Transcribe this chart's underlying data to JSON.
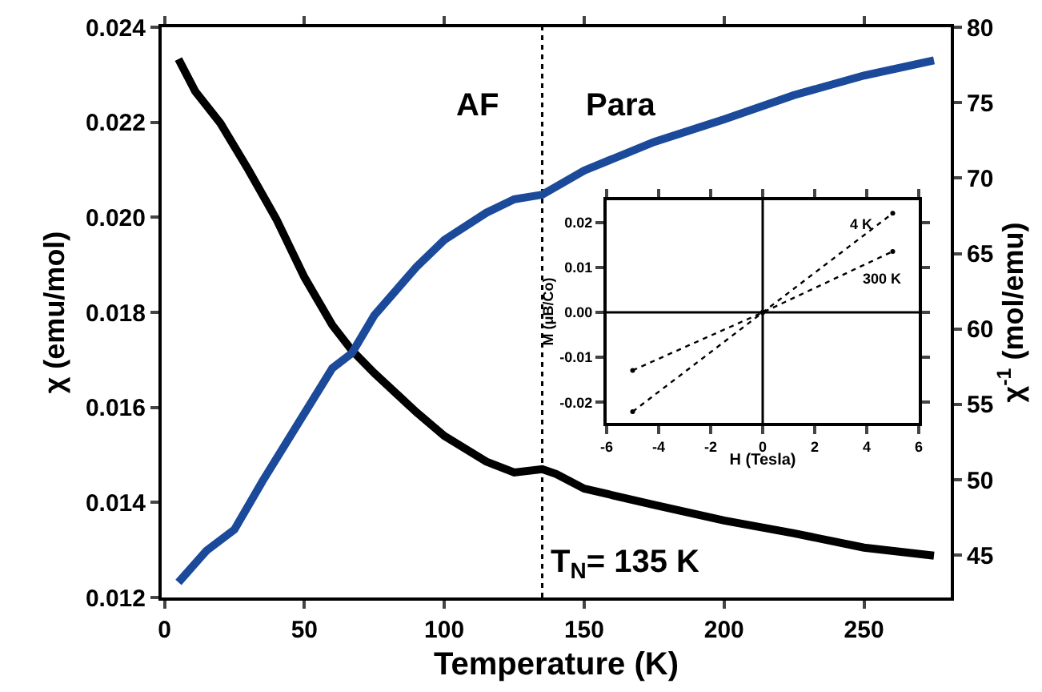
{
  "chart_data": [
    {
      "type": "line",
      "xlabel": "Temperature (K)",
      "ylabel": "χ (emu/mol)",
      "y2label": "χ$^{-1}$ (mol/emu)",
      "xlim": [
        -1,
        281
      ],
      "xticks": [
        0,
        50,
        100,
        150,
        200,
        250
      ],
      "ylim": [
        0.012,
        0.024
      ],
      "yticks": [
        0.012,
        0.014,
        0.016,
        0.018,
        {
          "value": 0.02,
          "label": "0.020"
        },
        0.022,
        0.024
      ],
      "y2lim": [
        42.2,
        80
      ],
      "y2ticks": [
        45,
        50,
        55,
        60,
        65,
        70,
        75,
        80
      ],
      "grid": false,
      "legend": false,
      "marker": "none",
      "line_style": "solid",
      "series": [
        {
          "color": "#000000",
          "x": [
            5,
            11,
            20,
            30,
            40,
            50,
            60,
            67,
            75,
            90,
            100,
            115,
            125,
            135,
            140,
            150,
            175,
            200,
            225,
            250,
            275
          ],
          "values": [
            0.02333,
            0.02265,
            0.02198,
            0.021,
            0.01996,
            0.01874,
            0.01773,
            0.0172,
            0.01672,
            0.0159,
            0.0154,
            0.01486,
            0.01463,
            0.0147,
            0.0146,
            0.01429,
            0.01395,
            0.01362,
            0.01335,
            0.01305,
            0.01288
          ]
        },
        {
          "color": "#1c4a9a",
          "axis": "y2",
          "x": [
            5,
            15,
            25,
            35,
            50,
            60,
            67,
            75,
            90,
            100,
            115,
            125,
            135,
            150,
            175,
            200,
            225,
            250,
            275
          ],
          "values": [
            43.2,
            45.3,
            46.7,
            49.9,
            54.4,
            57.4,
            58.4,
            60.9,
            64.1,
            65.9,
            67.7,
            68.6,
            68.9,
            70.5,
            72.4,
            73.9,
            75.5,
            76.8,
            77.8
          ]
        }
      ],
      "ref_lines": [
        {
          "axis": "x",
          "value": 135,
          "label": "T$_{N}$= 135 K",
          "line_style": "dotted",
          "color": "#000000"
        }
      ],
      "annotations": [
        "AF",
        "Para"
      ]
    },
    {
      "type": "line",
      "xlabel": "H (Tesla)",
      "ylabel": "M (μB/Co)",
      "xlim": [
        -6,
        6
      ],
      "xticks": [
        -6,
        -4,
        -2,
        0,
        2,
        4,
        6
      ],
      "ylim": [
        -0.0246,
        0.025
      ],
      "yticks": [
        -0.02,
        -0.01,
        {
          "value": 0,
          "label": "0.00"
        },
        0.01,
        0.02
      ],
      "grid": false,
      "legend": false,
      "marker": "circle",
      "line_style": "dotted",
      "series": [
        {
          "name": "4 K",
          "color": "#000000",
          "x": [
            -5,
            0,
            5
          ],
          "values": [
            -0.0221,
            0,
            0.0221
          ]
        },
        {
          "name": "300 K",
          "color": "#000000",
          "x": [
            -5,
            0,
            5
          ],
          "values": [
            -0.0129,
            0,
            0.0136
          ]
        }
      ],
      "ref_lines": [
        {
          "axis": "x",
          "value": 0,
          "color": "#000000",
          "line_style": "solid"
        },
        {
          "axis": "y",
          "value": 0,
          "color": "#000000",
          "line_style": "solid"
        }
      ]
    }
  ]
}
